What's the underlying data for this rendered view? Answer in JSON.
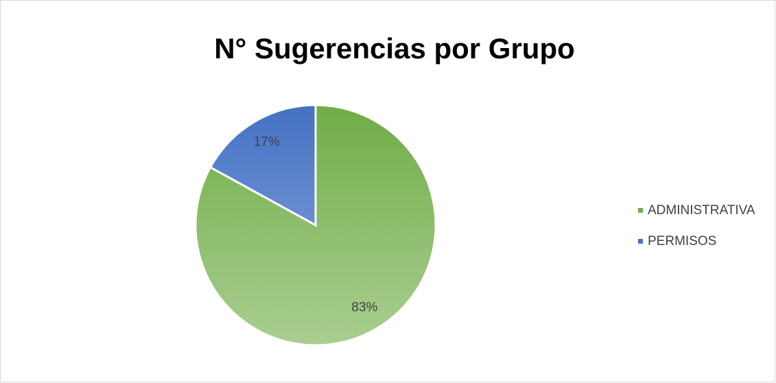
{
  "chart_data": {
    "type": "pie",
    "title": "N° Sugerencias por Grupo",
    "categories": [
      "ADMINISTRATIVA",
      "PERMISOS"
    ],
    "values": [
      83,
      17
    ],
    "value_labels": [
      "83%",
      "17%"
    ],
    "colors": [
      "#70ad47",
      "#4472c4"
    ],
    "legend": "right"
  }
}
